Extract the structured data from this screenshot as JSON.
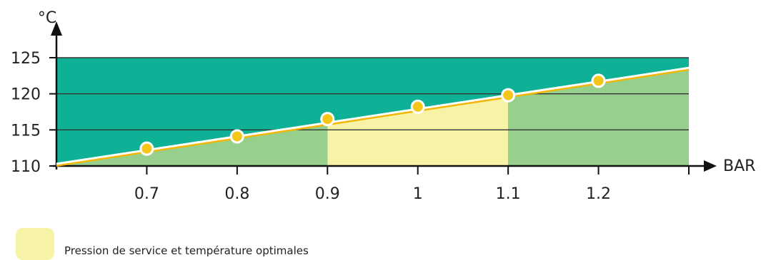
{
  "chart_data": {
    "type": "line",
    "x_unit": "BAR",
    "y_unit": "°C",
    "x_ticks": [
      "0.7",
      "0.8",
      "0.9",
      "1",
      "1.1",
      "1.2"
    ],
    "x_tick_values": [
      0.7,
      0.8,
      0.9,
      1.0,
      1.1,
      1.2
    ],
    "y_ticks": [
      "110",
      "115",
      "120",
      "125"
    ],
    "y_tick_values": [
      110,
      115,
      120,
      125
    ],
    "xlim": [
      0.6,
      1.3
    ],
    "ylim": [
      110,
      125
    ],
    "line": {
      "x": [
        0.6,
        1.3
      ],
      "y": [
        110.3,
        123.6
      ]
    },
    "points": [
      {
        "x": 0.7,
        "y": 112.4
      },
      {
        "x": 0.8,
        "y": 114.1
      },
      {
        "x": 0.9,
        "y": 116.5
      },
      {
        "x": 1.0,
        "y": 118.2
      },
      {
        "x": 1.1,
        "y": 119.8
      },
      {
        "x": 1.2,
        "y": 121.8
      }
    ],
    "optimal_range": [
      0.9,
      1.1
    ],
    "grid": true,
    "legend": "bottom-left",
    "colors": {
      "above_band": "#0fb196",
      "below_band": "#97d08d",
      "optimal_band": "#f7f3a6",
      "line_white": "#ffffff",
      "line_yellow": "#f2b705",
      "point_fill": "#f5c518",
      "axis": "#111111",
      "grid": "#333333"
    }
  },
  "legend": {
    "label": "Pression de service et température optimales"
  }
}
